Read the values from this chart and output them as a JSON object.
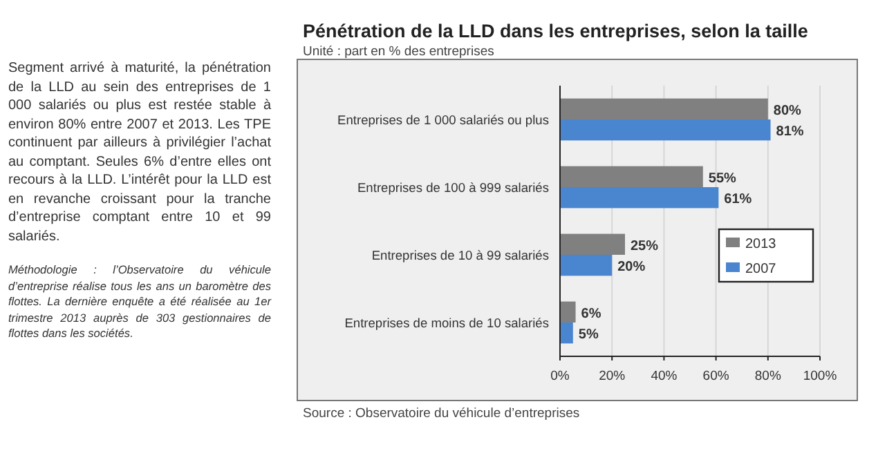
{
  "chart_data": {
    "type": "bar",
    "orientation": "horizontal",
    "title": "Pénétration de la LLD dans les entreprises, selon la taille",
    "subtitle": "Unité : part en % des entreprises",
    "categories": [
      "Entreprises de  1 000 salariés ou plus",
      "Entreprises de 100 à 999 salariés",
      "Entreprises de 10 à 99 salariés",
      "Entreprises de moins de 10 salariés"
    ],
    "series": [
      {
        "name": "2013",
        "color": "#808080",
        "values": [
          80,
          55,
          25,
          6
        ],
        "value_labels": [
          "80%",
          "55%",
          "25%",
          "6%"
        ]
      },
      {
        "name": "2007",
        "color": "#4a86d0",
        "values": [
          81,
          61,
          20,
          5
        ],
        "value_labels": [
          "81%",
          "61%",
          "20%",
          "5%"
        ]
      }
    ],
    "xlim": [
      0,
      100
    ],
    "xticks": [
      {
        "value": 0,
        "label": "0%"
      },
      {
        "value": 20,
        "label": "20%"
      },
      {
        "value": 40,
        "label": "40%"
      },
      {
        "value": 60,
        "label": "60%"
      },
      {
        "value": 80,
        "label": "80%"
      },
      {
        "value": 100,
        "label": "100%"
      }
    ],
    "grid": "x",
    "legend": "right",
    "annotations": [
      "Segment arrivé à maturité, la pénétration de la LLD au sein des entreprises de 1 000 salariés ou plus est restée stable à environ 80% entre 2007 et 2013. Les TPE continuent par ailleurs à privilégier l’achat au comptant. Seules 6% d’entre elles ont recours à la LLD. L’intérêt pour la LLD est en revanche croissant pour la tranche d’entreprise comptant entre 10 et 99 salariés.",
      "Méthodologie : l’Observatoire du véhicule d’entreprise réalise tous les ans un baromètre des flottes. La dernière enquête a été réalisée au 1er trimestre 2013 auprès de 303 gestionnaires de flottes dans les sociétés.",
      "Source : Observatoire du véhicule d’entreprises"
    ]
  }
}
